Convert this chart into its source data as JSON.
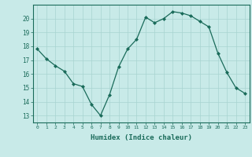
{
  "x": [
    0,
    1,
    2,
    3,
    4,
    5,
    6,
    7,
    8,
    9,
    10,
    11,
    12,
    13,
    14,
    15,
    16,
    17,
    18,
    19,
    20,
    21,
    22,
    23
  ],
  "y": [
    17.8,
    17.1,
    16.6,
    16.2,
    15.3,
    15.1,
    13.8,
    13.0,
    14.5,
    16.5,
    17.8,
    18.5,
    20.1,
    19.7,
    20.0,
    20.5,
    20.4,
    20.2,
    19.8,
    19.4,
    17.5,
    16.1,
    15.0,
    14.6
  ],
  "line_color": "#1a6b5a",
  "marker": "D",
  "marker_size": 2,
  "bg_color": "#c8eae8",
  "grid_color": "#a8d4d0",
  "tick_color": "#1a6b5a",
  "label_color": "#1a6b5a",
  "xlabel": "Humidex (Indice chaleur)",
  "ylim": [
    12.5,
    21.0
  ],
  "yticks": [
    13,
    14,
    15,
    16,
    17,
    18,
    19,
    20
  ],
  "xticks": [
    0,
    1,
    2,
    3,
    4,
    5,
    6,
    7,
    8,
    9,
    10,
    11,
    12,
    13,
    14,
    15,
    16,
    17,
    18,
    19,
    20,
    21,
    22,
    23
  ],
  "xlim": [
    -0.5,
    23.5
  ]
}
